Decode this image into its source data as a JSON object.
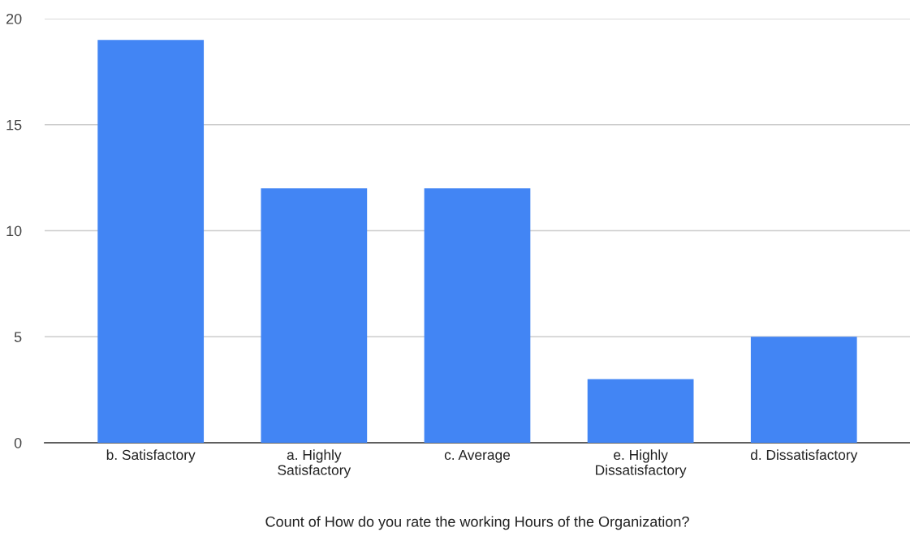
{
  "chart_data": {
    "type": "bar",
    "xlabel": "Count of How do you rate the working Hours of the Organization?",
    "categories": [
      "b. Satisfactory",
      "a. Highly\nSatisfactory",
      "c. Average",
      "e. Highly\nDissatisfactory",
      "d. Dissatisfactory"
    ],
    "values": [
      19,
      12,
      12,
      3,
      5
    ],
    "color": "#4285f4",
    "ylim": [
      0,
      20
    ],
    "yticks": [
      0,
      5,
      10,
      15,
      20
    ],
    "grid": "y",
    "legend": false
  }
}
